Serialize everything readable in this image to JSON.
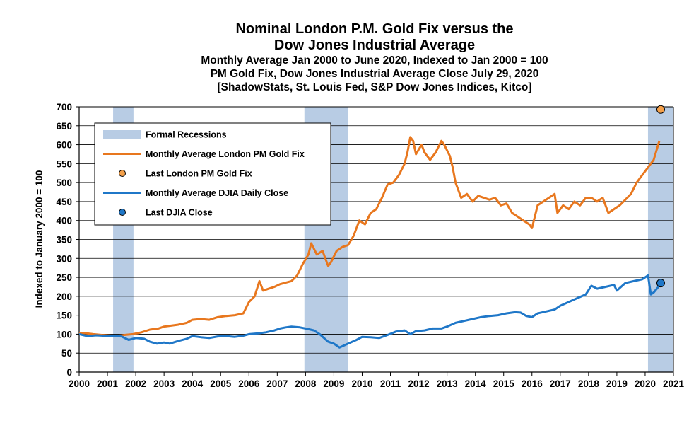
{
  "chart_data": {
    "type": "line",
    "title_line1": "Nominal London P.M. Gold Fix versus the",
    "title_line2": "Dow Jones Industrial Average",
    "subtitle_line1": "Monthly Average Jan 2000 to June 2020, Indexed to Jan 2000 = 100",
    "subtitle_line2": "PM Gold Fix, Dow Jones Industrial Average Close July 29, 2020",
    "subtitle_line3": "[ShadowStats, St. Louis Fed, S&P Dow Jones Indices, Kitco]",
    "ylabel": "Indexed to January 2000 = 100",
    "xlabel": "",
    "xlim": [
      2000,
      2021
    ],
    "ylim": [
      0,
      700
    ],
    "x_ticks": [
      2000,
      2001,
      2002,
      2003,
      2004,
      2005,
      2006,
      2007,
      2008,
      2009,
      2010,
      2011,
      2012,
      2013,
      2014,
      2015,
      2016,
      2017,
      2018,
      2019,
      2020,
      2021
    ],
    "y_ticks": [
      0,
      50,
      100,
      150,
      200,
      250,
      300,
      350,
      400,
      450,
      500,
      550,
      600,
      650,
      700
    ],
    "grid": true,
    "legend_position": "top-left",
    "recessions": [
      {
        "start": 2001.2,
        "end": 2001.92
      },
      {
        "start": 2007.96,
        "end": 2009.5
      },
      {
        "start": 2020.1,
        "end": 2021
      }
    ],
    "series": [
      {
        "name": "Monthly Average London PM Gold Fix",
        "color": "#E8771E",
        "x": [
          2000,
          2000.2,
          2000.5,
          2000.8,
          2001.0,
          2001.3,
          2001.6,
          2001.9,
          2002.2,
          2002.5,
          2002.8,
          2003.0,
          2003.2,
          2003.5,
          2003.8,
          2004.0,
          2004.3,
          2004.6,
          2004.9,
          2005.2,
          2005.5,
          2005.8,
          2006.0,
          2006.2,
          2006.37,
          2006.5,
          2006.7,
          2006.9,
          2007.1,
          2007.3,
          2007.5,
          2007.7,
          2007.9,
          2008.1,
          2008.2,
          2008.4,
          2008.6,
          2008.8,
          2008.9,
          2009.1,
          2009.3,
          2009.5,
          2009.7,
          2009.9,
          2010.1,
          2010.3,
          2010.5,
          2010.7,
          2010.9,
          2011.1,
          2011.3,
          2011.5,
          2011.6,
          2011.7,
          2011.8,
          2011.9,
          2012.1,
          2012.2,
          2012.4,
          2012.6,
          2012.8,
          2012.9,
          2013.1,
          2013.2,
          2013.3,
          2013.5,
          2013.7,
          2013.9,
          2014.1,
          2014.3,
          2014.5,
          2014.7,
          2014.9,
          2015.1,
          2015.3,
          2015.5,
          2015.7,
          2015.9,
          2016.0,
          2016.2,
          2016.4,
          2016.6,
          2016.8,
          2016.9,
          2017.1,
          2017.3,
          2017.5,
          2017.7,
          2017.9,
          2018.1,
          2018.3,
          2018.5,
          2018.7,
          2018.9,
          2019.1,
          2019.3,
          2019.5,
          2019.7,
          2019.9,
          2020.1,
          2020.3,
          2020.5
        ],
        "values": [
          102,
          103,
          100,
          98,
          97,
          95,
          98,
          100,
          105,
          112,
          115,
          120,
          122,
          125,
          130,
          138,
          140,
          138,
          145,
          148,
          150,
          155,
          185,
          200,
          240,
          215,
          220,
          225,
          232,
          236,
          240,
          255,
          285,
          310,
          340,
          310,
          320,
          280,
          290,
          320,
          330,
          335,
          360,
          400,
          390,
          420,
          430,
          460,
          495,
          500,
          520,
          550,
          580,
          620,
          610,
          575,
          600,
          580,
          560,
          580,
          610,
          600,
          570,
          540,
          500,
          460,
          470,
          450,
          465,
          460,
          455,
          460,
          440,
          445,
          420,
          410,
          400,
          390,
          380,
          440,
          450,
          460,
          470,
          420,
          440,
          430,
          450,
          440,
          460,
          460,
          450,
          460,
          420,
          430,
          440,
          455,
          470,
          500,
          520,
          540,
          560,
          610
        ]
      },
      {
        "name": "Monthly Average DJIA Daily Close",
        "color": "#1F77C8",
        "x": [
          2000,
          2000.3,
          2000.6,
          2000.9,
          2001.2,
          2001.5,
          2001.75,
          2002.0,
          2002.3,
          2002.5,
          2002.75,
          2003.0,
          2003.2,
          2003.5,
          2003.8,
          2004.0,
          2004.3,
          2004.6,
          2004.9,
          2005.2,
          2005.5,
          2005.8,
          2006.0,
          2006.3,
          2006.6,
          2006.9,
          2007.1,
          2007.3,
          2007.5,
          2007.8,
          2008.0,
          2008.3,
          2008.5,
          2008.8,
          2009.0,
          2009.2,
          2009.5,
          2009.8,
          2010.0,
          2010.3,
          2010.6,
          2010.9,
          2011.2,
          2011.5,
          2011.7,
          2011.9,
          2012.2,
          2012.5,
          2012.8,
          2013.0,
          2013.3,
          2013.6,
          2013.9,
          2014.2,
          2014.5,
          2014.8,
          2015.1,
          2015.4,
          2015.6,
          2015.8,
          2016.0,
          2016.2,
          2016.5,
          2016.8,
          2017.0,
          2017.3,
          2017.6,
          2017.9,
          2018.1,
          2018.3,
          2018.6,
          2018.9,
          2019.0,
          2019.3,
          2019.6,
          2019.9,
          2020.1,
          2020.2,
          2020.3,
          2020.5
        ],
        "values": [
          100,
          95,
          97,
          96,
          95,
          94,
          85,
          90,
          88,
          80,
          75,
          78,
          75,
          82,
          88,
          95,
          92,
          90,
          94,
          95,
          93,
          96,
          100,
          102,
          105,
          110,
          115,
          118,
          120,
          118,
          115,
          110,
          100,
          80,
          75,
          65,
          75,
          85,
          93,
          92,
          90,
          98,
          107,
          110,
          100,
          108,
          110,
          115,
          115,
          120,
          130,
          135,
          140,
          145,
          148,
          150,
          155,
          158,
          157,
          148,
          145,
          155,
          160,
          165,
          175,
          185,
          195,
          205,
          228,
          220,
          225,
          230,
          215,
          235,
          240,
          245,
          255,
          205,
          210,
          228
        ]
      }
    ],
    "points": [
      {
        "name": "Last London PM Gold Fix",
        "color": "#F4A04A",
        "x": 2020.55,
        "y": 693
      },
      {
        "name": "Last DJIA Close",
        "color": "#1F77C8",
        "x": 2020.55,
        "y": 235
      }
    ],
    "legend": [
      {
        "label": "Formal Recessions",
        "kind": "band",
        "color": "#B8CCE4"
      },
      {
        "label": "Monthly Average London PM Gold Fix",
        "kind": "line",
        "color": "#E8771E"
      },
      {
        "label": "Last London PM Gold Fix",
        "kind": "dot",
        "color": "#F4A04A"
      },
      {
        "label": "Monthly Average DJIA Daily Close",
        "kind": "line",
        "color": "#1F77C8"
      },
      {
        "label": "Last DJIA Close",
        "kind": "dot",
        "color": "#1F77C8"
      }
    ]
  }
}
